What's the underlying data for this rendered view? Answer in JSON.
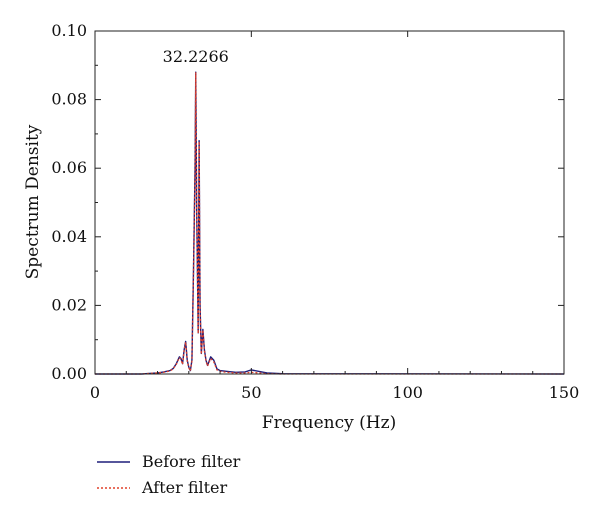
{
  "chart_data": {
    "type": "line",
    "xlabel": "Frequency (Hz)",
    "ylabel": "Spectrum Density",
    "xlim": [
      0,
      150
    ],
    "ylim": [
      0,
      0.1
    ],
    "xticks": [
      0,
      50,
      100,
      150
    ],
    "xtick_labels": [
      "0",
      "50",
      "100",
      "150"
    ],
    "yticks": [
      0,
      0.02,
      0.04,
      0.06,
      0.08,
      0.1
    ],
    "ytick_labels": [
      "0.00",
      "0.02",
      "0.04",
      "0.06",
      "0.08",
      "0.10"
    ],
    "grid": false,
    "legend_position": "bottom-left, below plot",
    "annotations": [
      {
        "text": "32.2266",
        "x": 32.2266,
        "y": 0.088
      }
    ],
    "series": [
      {
        "name": "Before filter",
        "color": "#1f1f7a",
        "style": "solid",
        "x": [
          0,
          15,
          18,
          20,
          22,
          24,
          25,
          26,
          27,
          27.5,
          28,
          28.5,
          29,
          29.5,
          30,
          30.5,
          31,
          31.5,
          32,
          32.2266,
          32.5,
          33,
          33.3,
          33.6,
          34,
          34.5,
          35,
          35.5,
          36,
          37,
          38,
          39,
          40,
          42,
          45,
          48,
          50,
          55,
          60,
          150
        ],
        "y": [
          0,
          0,
          0.0002,
          0.0003,
          0.0006,
          0.001,
          0.0016,
          0.003,
          0.005,
          0.0045,
          0.003,
          0.007,
          0.0095,
          0.004,
          0.002,
          0.001,
          0.004,
          0.03,
          0.06,
          0.088,
          0.05,
          0.012,
          0.068,
          0.02,
          0.006,
          0.013,
          0.007,
          0.004,
          0.0025,
          0.005,
          0.004,
          0.0015,
          0.001,
          0.0008,
          0.0005,
          0.0006,
          0.0012,
          0.0003,
          0.0001,
          0
        ]
      },
      {
        "name": "After filter",
        "color": "#e0402a",
        "style": "dotted",
        "x": [
          0,
          15,
          18,
          20,
          22,
          24,
          25,
          26,
          27,
          27.5,
          28,
          28.5,
          29,
          29.5,
          30,
          30.5,
          31,
          31.5,
          32,
          32.2266,
          32.5,
          33,
          33.3,
          33.6,
          34,
          34.5,
          35,
          35.5,
          36,
          37,
          38,
          39,
          40,
          42,
          45,
          48,
          50,
          55,
          60,
          150
        ],
        "y": [
          0,
          0,
          0.0002,
          0.0003,
          0.0005,
          0.0009,
          0.0015,
          0.0028,
          0.0048,
          0.0043,
          0.0028,
          0.0068,
          0.0093,
          0.0038,
          0.0018,
          0.0009,
          0.0038,
          0.0295,
          0.0595,
          0.0878,
          0.0495,
          0.0118,
          0.0678,
          0.0195,
          0.0058,
          0.0128,
          0.0068,
          0.0038,
          0.0023,
          0.0045,
          0.0035,
          0.0012,
          0.0008,
          0.0005,
          0.0003,
          0.0003,
          0.0005,
          0.0001,
          0,
          0
        ]
      }
    ]
  }
}
